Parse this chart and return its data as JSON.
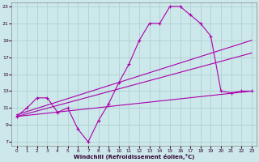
{
  "xlabel": "Windchill (Refroidissement éolien,°C)",
  "bg_color": "#cce8ea",
  "grid_color": "#aacccc",
  "line_color": "#aa00aa",
  "xlim": [
    -0.5,
    23.5
  ],
  "ylim": [
    6.5,
    23.5
  ],
  "yticks": [
    7,
    9,
    11,
    13,
    15,
    17,
    19,
    21,
    23
  ],
  "xticks": [
    0,
    1,
    2,
    3,
    4,
    5,
    6,
    7,
    8,
    9,
    10,
    11,
    12,
    13,
    14,
    15,
    16,
    17,
    18,
    19,
    20,
    21,
    22,
    23
  ],
  "line1_x": [
    0,
    1,
    2,
    3,
    4,
    5,
    6,
    7,
    8,
    9,
    10,
    11,
    12,
    13,
    14,
    15,
    16,
    17,
    18,
    19,
    20,
    21,
    22,
    23
  ],
  "line1_y": [
    10.0,
    11.0,
    12.2,
    12.2,
    10.5,
    11.0,
    8.5,
    7.0,
    9.5,
    11.5,
    14.0,
    16.2,
    19.0,
    21.0,
    21.0,
    23.0,
    23.0,
    22.0,
    21.0,
    19.5,
    13.0,
    12.8,
    13.0,
    13.0
  ],
  "line2_x": [
    0,
    23
  ],
  "line2_y": [
    10.2,
    19.0
  ],
  "line3_x": [
    0,
    23
  ],
  "line3_y": [
    10.0,
    17.5
  ],
  "line4_x": [
    0,
    23
  ],
  "line4_y": [
    10.0,
    13.0
  ]
}
